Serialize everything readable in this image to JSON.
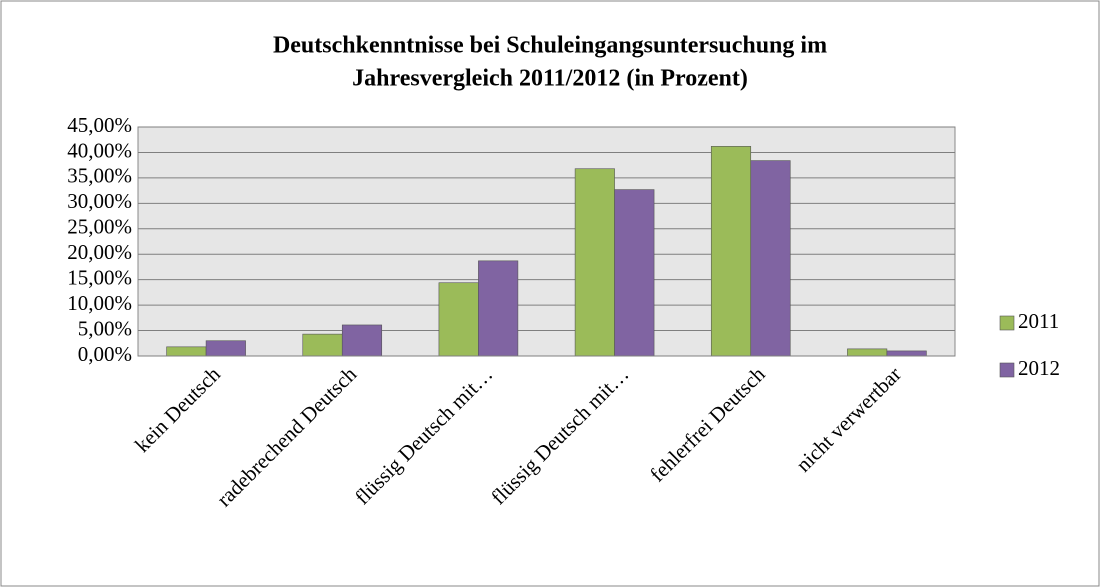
{
  "chart_data": {
    "type": "bar",
    "title": [
      "Deutschkenntnisse bei Schuleingangsuntersuchung im",
      "Jahresvergleich 2011/2012 (in Prozent)"
    ],
    "categories": [
      "kein Deutsch",
      "radebrechend Deutsch",
      "flüssig Deutsch mit…",
      "flüssig Deutsch mit…",
      "fehlerfrei Deutsch",
      "nicht verwertbar"
    ],
    "series": [
      {
        "name": "2011",
        "color": "#9bbb59",
        "values": [
          1.8,
          4.3,
          14.4,
          36.8,
          41.2,
          1.4
        ]
      },
      {
        "name": "2012",
        "color": "#8064a2",
        "values": [
          3.0,
          6.1,
          18.7,
          32.7,
          38.4,
          1.0
        ]
      }
    ],
    "ylim": [
      0,
      45
    ],
    "yticks": [
      {
        "value": 0,
        "label": "0,00%"
      },
      {
        "value": 5,
        "label": "5,00%"
      },
      {
        "value": 10,
        "label": "10,00%"
      },
      {
        "value": 15,
        "label": "15,00%"
      },
      {
        "value": 20,
        "label": "20,00%"
      },
      {
        "value": 25,
        "label": "25,00%"
      },
      {
        "value": 30,
        "label": "30,00%"
      },
      {
        "value": 35,
        "label": "35,00%"
      },
      {
        "value": 40,
        "label": "40,00%"
      },
      {
        "value": 45,
        "label": "45,00%"
      }
    ],
    "grid": true,
    "legend": "right"
  }
}
